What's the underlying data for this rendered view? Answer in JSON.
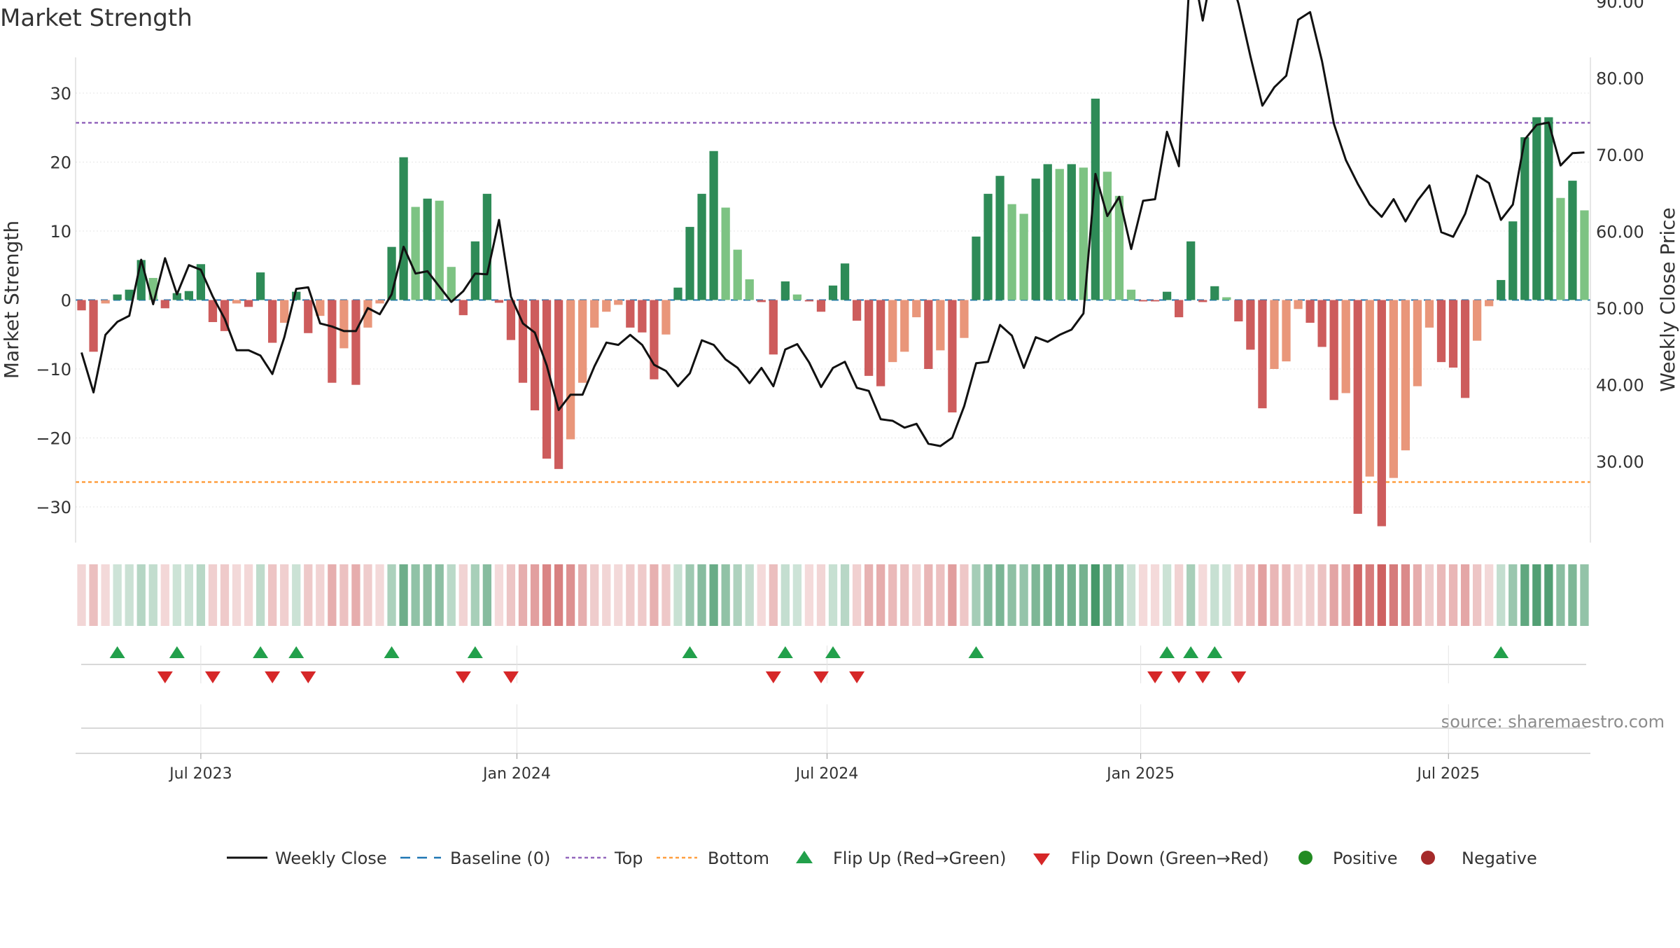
{
  "title": "Market Strength",
  "source": "source: sharemaestro.com",
  "colors": {
    "strong_pos": "#2e8b57",
    "weak_pos": "#7dc383",
    "strong_neg": "#cd5c5c",
    "weak_neg": "#e9967a",
    "price_line": "#111111",
    "baseline": "#1f77b4",
    "top_line": "#9467bd",
    "bottom_line": "#ff9f40",
    "flip_up": "#22a04b",
    "flip_down": "#d62728",
    "positive": "#228b22",
    "negative": "#a52a2a"
  },
  "legend": [
    {
      "key": "weekly",
      "label": "Weekly Close"
    },
    {
      "key": "baseline",
      "label": "Baseline (0)"
    },
    {
      "key": "top",
      "label": "Top"
    },
    {
      "key": "bottom",
      "label": "Bottom"
    },
    {
      "key": "flipup",
      "label": "Flip Up (Red→Green)"
    },
    {
      "key": "flipdown",
      "label": "Flip Down (Green→Red)"
    },
    {
      "key": "positive",
      "label": "Positive"
    },
    {
      "key": "negative",
      "label": "Negative"
    }
  ],
  "chart_data": {
    "type": "bar",
    "title": "Market Strength",
    "ylabel": "Market Strength",
    "y2label": "Weekly Close Price",
    "ylim": [
      -35,
      35
    ],
    "y2lim": [
      26,
      99
    ],
    "yticks": [
      -30,
      -20,
      -10,
      0,
      10,
      20,
      30
    ],
    "yticklabels": [
      "−30",
      "−20",
      "−10",
      "0",
      "10",
      "20",
      "30"
    ],
    "y2ticks": [
      30,
      40,
      50,
      60,
      70,
      80,
      90
    ],
    "y2ticklabels": [
      "30.00",
      "40.00",
      "50.00",
      "60.00",
      "70.00",
      "80.00",
      "90.00"
    ],
    "xticks": [
      {
        "label": "Jul 2023",
        "week": 10
      },
      {
        "label": "Jan 2024",
        "week": 36.5
      },
      {
        "label": "Jul 2024",
        "week": 62.5
      },
      {
        "label": "Jan 2025",
        "week": 88.8
      },
      {
        "label": "Jul 2025",
        "week": 114.6
      }
    ],
    "top": 25.7,
    "bottom": -26.4,
    "baseline": 0,
    "strength": [
      -1.5,
      -7.5,
      -0.5,
      0.8,
      1.5,
      5.8,
      3.2,
      -1.2,
      1.0,
      1.3,
      5.2,
      -3.2,
      -4.5,
      -0.5,
      -1.0,
      4.0,
      -6.2,
      -3.3,
      1.2,
      -4.8,
      -2.3,
      -12.0,
      -7.0,
      -12.3,
      -4.0,
      -0.5,
      7.7,
      20.7,
      13.5,
      14.7,
      14.4,
      4.8,
      -2.2,
      8.5,
      15.4,
      -0.4,
      -5.8,
      -12.0,
      -16.0,
      -23.0,
      -24.5,
      -20.2,
      -12.0,
      -4.0,
      -1.7,
      -0.7,
      -4.0,
      -4.7,
      -11.5,
      -5.0,
      1.8,
      10.6,
      15.4,
      21.6,
      13.4,
      7.3,
      3.0,
      -0.3,
      -7.9,
      2.7,
      0.8,
      -0.2,
      -1.7,
      2.1,
      5.3,
      -3.0,
      -11.0,
      -12.5,
      -9.0,
      -7.5,
      -2.5,
      -10.0,
      -7.3,
      -16.3,
      -5.5,
      9.2,
      15.4,
      18.0,
      13.9,
      12.5,
      17.6,
      19.7,
      19.0,
      19.7,
      19.2,
      29.2,
      18.6,
      15.1,
      1.5,
      -0.2,
      -0.2,
      1.2,
      -2.5,
      8.5,
      -0.3,
      2.0,
      0.4,
      -3.1,
      -7.2,
      -15.7,
      -10.0,
      -8.9,
      -1.3,
      -3.3,
      -6.8,
      -14.5,
      -13.5,
      -31.0,
      -25.6,
      -32.8,
      -25.8,
      -21.8,
      -12.5,
      -4.0,
      -9.0,
      -9.8,
      -14.2,
      -5.9,
      -0.9,
      2.9,
      11.4,
      23.6,
      26.5,
      26.5,
      14.8,
      17.3,
      13.0
    ],
    "weekly_close": [
      44.2,
      39.0,
      46.5,
      48.2,
      49.0,
      56.3,
      50.5,
      56.5,
      51.8,
      55.6,
      55.0,
      51.5,
      48.6,
      44.5,
      44.5,
      43.8,
      41.4,
      46.2,
      52.5,
      52.7,
      48.0,
      47.6,
      47.0,
      47.0,
      50.0,
      49.2,
      51.8,
      58.0,
      54.5,
      54.8,
      52.8,
      50.8,
      52.2,
      54.5,
      54.4,
      61.5,
      51.5,
      48.0,
      46.8,
      42.5,
      36.7,
      38.7,
      38.7,
      42.4,
      45.5,
      45.2,
      46.5,
      45.2,
      42.6,
      41.8,
      39.8,
      41.5,
      45.8,
      45.2,
      43.3,
      42.2,
      40.2,
      42.2,
      39.8,
      44.6,
      45.3,
      42.9,
      39.7,
      42.2,
      43.0,
      39.6,
      39.2,
      35.5,
      35.3,
      34.4,
      34.9,
      32.3,
      32.0,
      33.1,
      37.2,
      42.8,
      43.0,
      47.8,
      46.4,
      42.2,
      46.2,
      45.6,
      46.5,
      47.2,
      49.3,
      67.5,
      62.0,
      64.5,
      57.7,
      64.0,
      64.2,
      73.0,
      68.5,
      95.8,
      87.5,
      95.9,
      94.9,
      89.7,
      82.8,
      76.4,
      78.8,
      80.3,
      87.6,
      88.6,
      82.2,
      74.0,
      69.3,
      66.2,
      63.5,
      61.9,
      64.2,
      61.3,
      64.0,
      66.0,
      59.9,
      59.3,
      62.3,
      67.3,
      66.3,
      61.5,
      63.5,
      72.0,
      73.9,
      74.2,
      68.6,
      70.2,
      70.3
    ],
    "flip_up_weeks": [
      3,
      8,
      15,
      18,
      26,
      33,
      51,
      59,
      63,
      75,
      91,
      93,
      95,
      119
    ],
    "flip_down_weeks": [
      7,
      11,
      16,
      19,
      32,
      36,
      58,
      62,
      65,
      90,
      92,
      94,
      97
    ]
  }
}
